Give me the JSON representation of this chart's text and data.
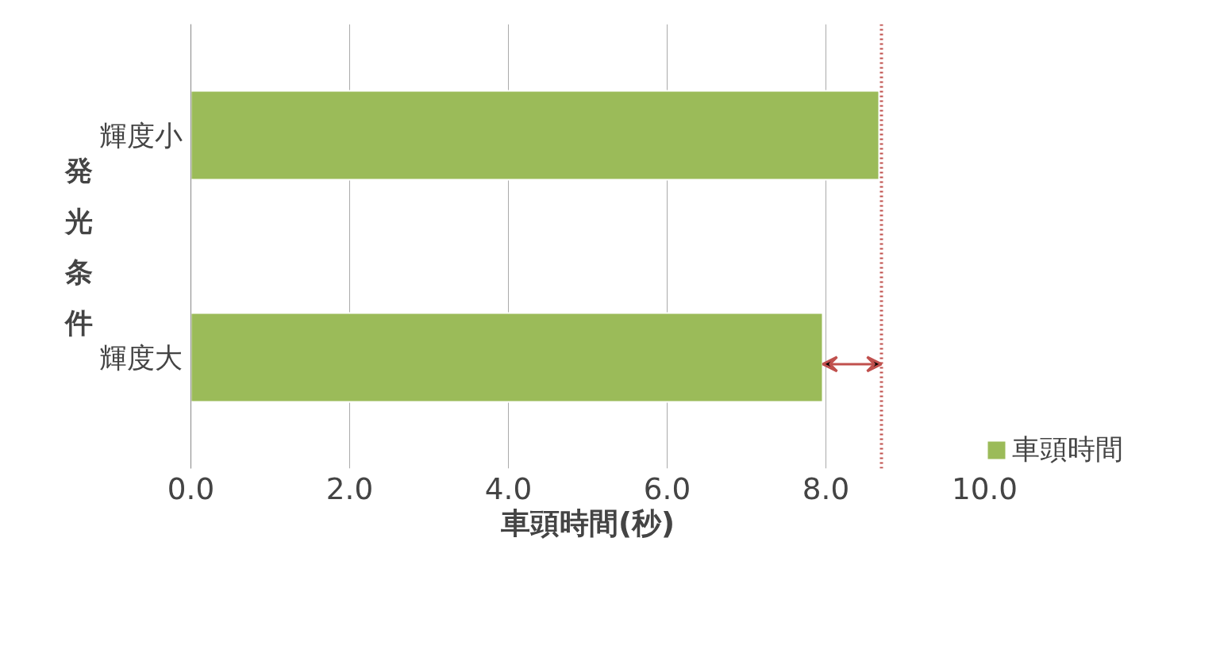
{
  "chart_data": {
    "type": "bar",
    "orientation": "horizontal",
    "xlabel": "車頭時間(秒)",
    "ylabel": "発光条件",
    "categories": [
      "輝度小",
      "輝度大"
    ],
    "series": [
      {
        "name": "車頭時間",
        "color": "#9bbb59",
        "values": [
          8.67,
          7.96
        ]
      }
    ],
    "xlim": [
      0,
      10
    ],
    "xticks": [
      {
        "value": 0,
        "label": "0.0"
      },
      {
        "value": 2,
        "label": "2.0"
      },
      {
        "value": 4,
        "label": "4.0"
      },
      {
        "value": 6,
        "label": "6.0"
      },
      {
        "value": 8,
        "label": "8.0"
      },
      {
        "value": 10,
        "label": "10.0"
      }
    ],
    "ref_lines": [
      {
        "axis": "x",
        "value": 8.7,
        "label": null,
        "color": "#c0504d",
        "line_style": "dotted"
      }
    ],
    "grid": "x",
    "legend": "bottom right"
  }
}
